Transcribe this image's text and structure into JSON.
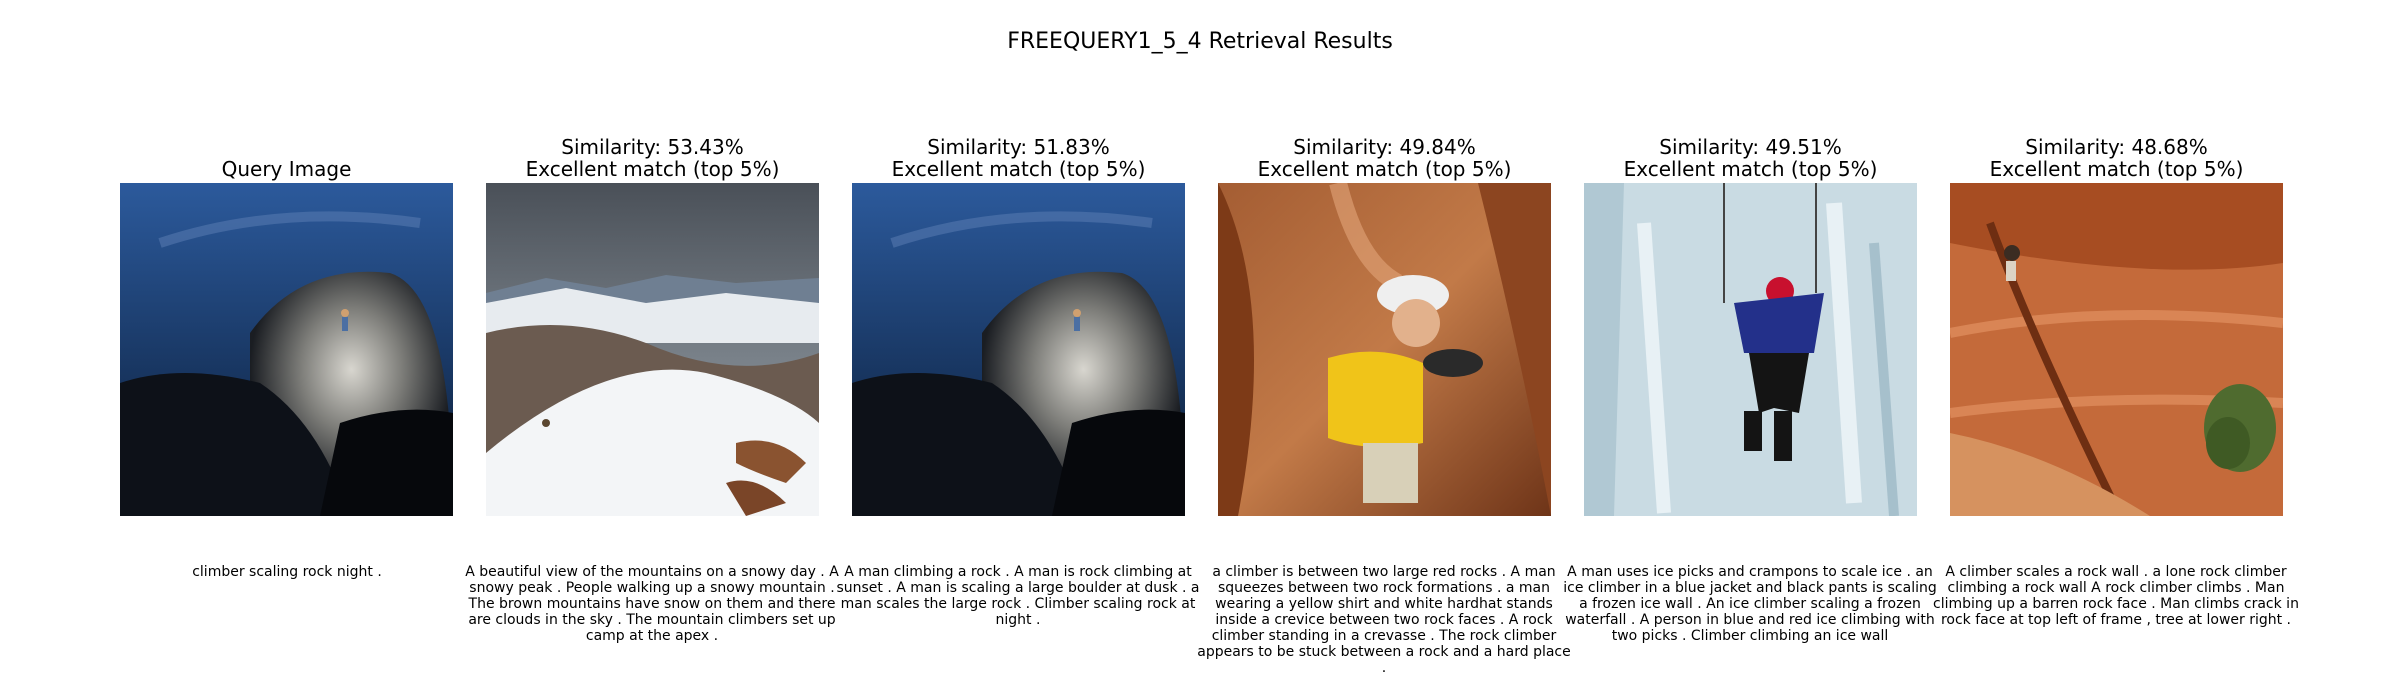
{
  "figure": {
    "title": "FREEQUERY1_5_4 Retrieval Results"
  },
  "query": {
    "heading": "Query Image",
    "caption": "climber scaling rock night ."
  },
  "results": [
    {
      "similarity": "Similarity: 53.43%",
      "quality": "Excellent match (top 5%)",
      "caption": "A beautiful view of the mountains on a snowy day . A snowy peak . People walking up a snowy mountain . The brown mountains have snow on them and there are clouds in the sky . The mountain climbers set up camp at the apex ."
    },
    {
      "similarity": "Similarity: 51.83%",
      "quality": "Excellent match (top 5%)",
      "caption": "A man climbing a rock . A man is rock climbing at sunset . A man is scaling a large boulder at dusk . a man scales the large rock . Climber scaling rock at night ."
    },
    {
      "similarity": "Similarity: 49.84%",
      "quality": "Excellent match (top 5%)",
      "caption": "a climber is between two large red rocks . A man squeezes between two rock formations . a man wearing a yellow shirt and white hardhat stands inside a crevice between two rock faces . A rock climber standing in a crevasse . The rock climber appears to be stuck between a rock and a hard place ."
    },
    {
      "similarity": "Similarity: 49.51%",
      "quality": "Excellent match (top 5%)",
      "caption": "A man uses ice picks and crampons to scale ice . an ice climber in a blue jacket and black pants is scaling a frozen ice wall . An ice climber scaling a frozen waterfall . A person in blue and red ice climbing with two picks . Climber climbing an ice wall"
    },
    {
      "similarity": "Similarity: 48.68%",
      "quality": "Excellent match (top 5%)",
      "caption": "A climber scales a rock wall . a lone rock climber climbing a rock wall A rock climber climbs . Man climbing up a barren rock face . Man climbs crack in rock face at top left of frame , tree at lower right ."
    }
  ]
}
